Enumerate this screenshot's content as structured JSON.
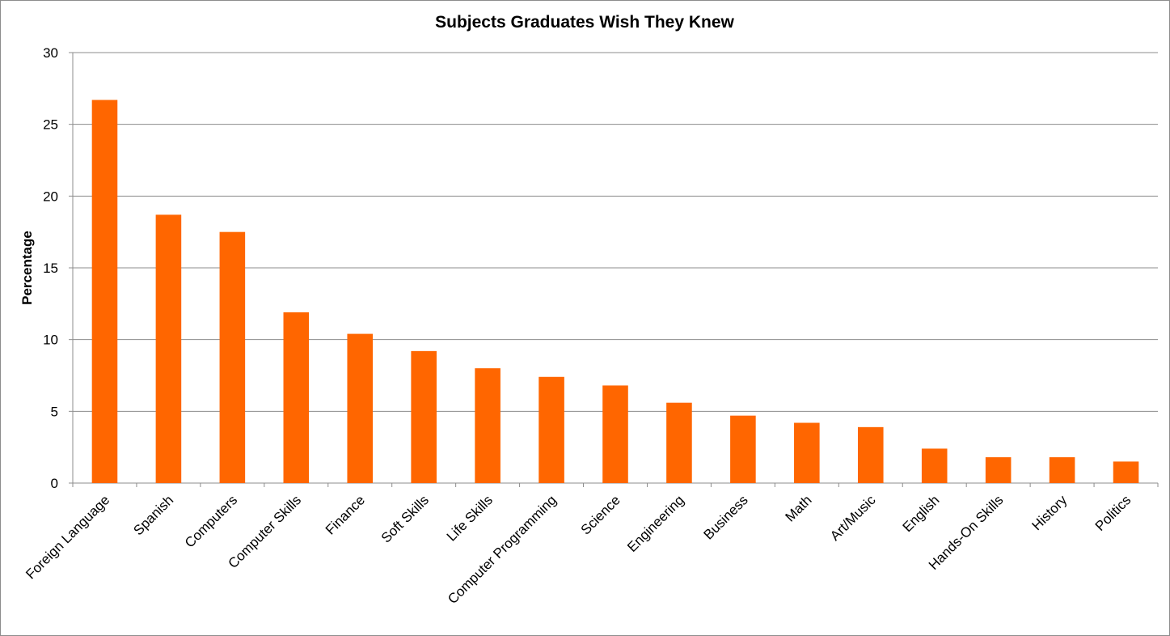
{
  "chart_data": {
    "type": "bar",
    "title": "Subjects Graduates Wish They Knew",
    "xlabel": "",
    "ylabel": "Percentage",
    "ylim": [
      0,
      30
    ],
    "yticks": [
      0,
      5,
      10,
      15,
      20,
      25,
      30
    ],
    "grid": true,
    "legend": "none",
    "bar_color": "#FF6600",
    "categories": [
      "Foreign Language",
      "Spanish",
      "Computers",
      "Computer Skills",
      "Finance",
      "Soft Skills",
      "Life Skills",
      "Computer Programming",
      "Science",
      "Engineering",
      "Business",
      "Math",
      "Art/Music",
      "English",
      "Hands-On Skills",
      "History",
      "Politics"
    ],
    "values": [
      26.7,
      18.7,
      17.5,
      11.9,
      10.4,
      9.2,
      8.0,
      7.4,
      6.8,
      5.6,
      4.7,
      4.2,
      3.9,
      2.4,
      1.8,
      1.8,
      1.5
    ]
  }
}
